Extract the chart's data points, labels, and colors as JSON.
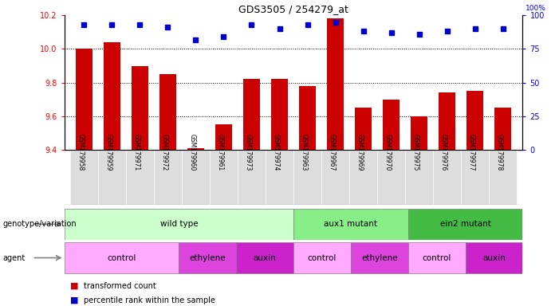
{
  "title": "GDS3505 / 254279_at",
  "samples": [
    "GSM179958",
    "GSM179959",
    "GSM179971",
    "GSM179972",
    "GSM179960",
    "GSM179961",
    "GSM179973",
    "GSM179974",
    "GSM179963",
    "GSM179967",
    "GSM179969",
    "GSM179970",
    "GSM179975",
    "GSM179976",
    "GSM179977",
    "GSM179978"
  ],
  "bar_values": [
    10.0,
    10.04,
    9.9,
    9.85,
    9.41,
    9.55,
    9.82,
    9.82,
    9.78,
    10.18,
    9.65,
    9.7,
    9.6,
    9.74,
    9.75,
    9.65
  ],
  "percentile_values": [
    93,
    93,
    93,
    91,
    82,
    84,
    93,
    90,
    93,
    95,
    88,
    87,
    86,
    88,
    90,
    90
  ],
  "ylim_left": [
    9.4,
    10.2
  ],
  "ylim_right": [
    0,
    100
  ],
  "yticks_left": [
    9.4,
    9.6,
    9.8,
    10.0,
    10.2
  ],
  "yticks_right": [
    0,
    25,
    50,
    75,
    100
  ],
  "bar_color": "#cc0000",
  "dot_color": "#0000cc",
  "bar_bottom": 9.4,
  "genotype_groups": [
    {
      "label": "wild type",
      "start": 0,
      "end": 8,
      "color": "#ccffcc"
    },
    {
      "label": "aux1 mutant",
      "start": 8,
      "end": 12,
      "color": "#88ee88"
    },
    {
      "label": "ein2 mutant",
      "start": 12,
      "end": 16,
      "color": "#44bb44"
    }
  ],
  "agent_groups": [
    {
      "label": "control",
      "start": 0,
      "end": 4,
      "color": "#ffaaff"
    },
    {
      "label": "ethylene",
      "start": 4,
      "end": 6,
      "color": "#dd44dd"
    },
    {
      "label": "auxin",
      "start": 6,
      "end": 8,
      "color": "#cc22cc"
    },
    {
      "label": "control",
      "start": 8,
      "end": 10,
      "color": "#ffaaff"
    },
    {
      "label": "ethylene",
      "start": 10,
      "end": 12,
      "color": "#dd44dd"
    },
    {
      "label": "control",
      "start": 12,
      "end": 14,
      "color": "#ffaaff"
    },
    {
      "label": "auxin",
      "start": 14,
      "end": 16,
      "color": "#cc22cc"
    }
  ],
  "legend_bar_label": "transformed count",
  "legend_dot_label": "percentile rank within the sample",
  "genotype_label": "genotype/variation",
  "agent_label": "agent",
  "background_color": "#ffffff",
  "xtick_bg": "#dddddd"
}
